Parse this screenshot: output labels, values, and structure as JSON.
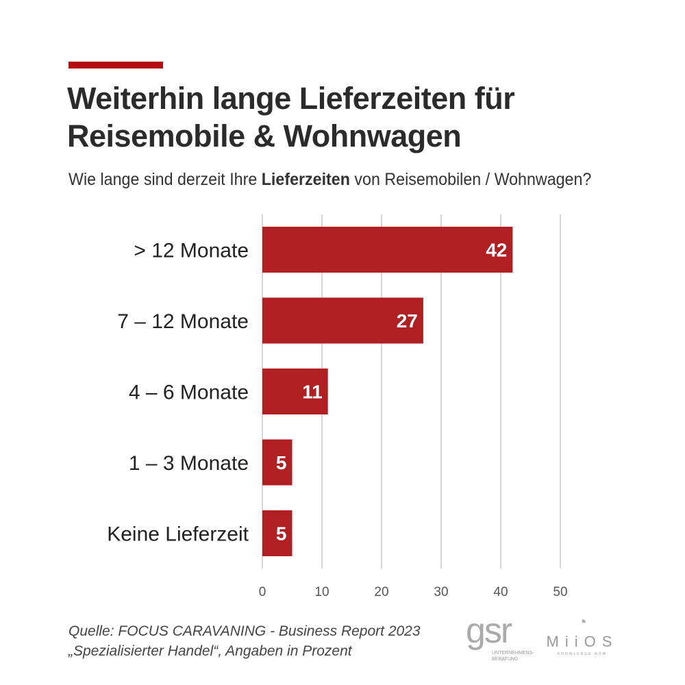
{
  "header": {
    "title_line1": "Weiterhin lange Lieferzeiten für",
    "title_line2": "Reisemobile & Wohnwagen",
    "subtitle_pre": "Wie lange sind derzeit Ihre ",
    "subtitle_bold": "Lieferzeiten",
    "subtitle_post": " von Reisemobilen / Wohnwagen?"
  },
  "chart_data": {
    "type": "bar",
    "orientation": "horizontal",
    "categories": [
      "> 12 Monate",
      "7 – 12 Monate",
      "4 – 6 Monate",
      "1 – 3 Monate",
      "Keine Lieferzeit"
    ],
    "values": [
      42,
      27,
      11,
      5,
      5
    ],
    "xlim": [
      0,
      50
    ],
    "ticks": [
      0,
      10,
      20,
      30,
      40,
      50
    ],
    "grid": true,
    "bar_color": "#b02023",
    "data_labels": true
  },
  "footer": {
    "source_line1": "Quelle: FOCUS CARAVANING - Business Report 2023",
    "source_line2": "„Spezialisierter Handel“, Angaben in Prozent",
    "logo1": "gsr",
    "logo1_sub1": "UNTERNEHMENS-",
    "logo1_sub2": "BERATUNG",
    "logo2": "MiiOS",
    "logo2_sub": "KNOWLEDGE.NOW"
  }
}
